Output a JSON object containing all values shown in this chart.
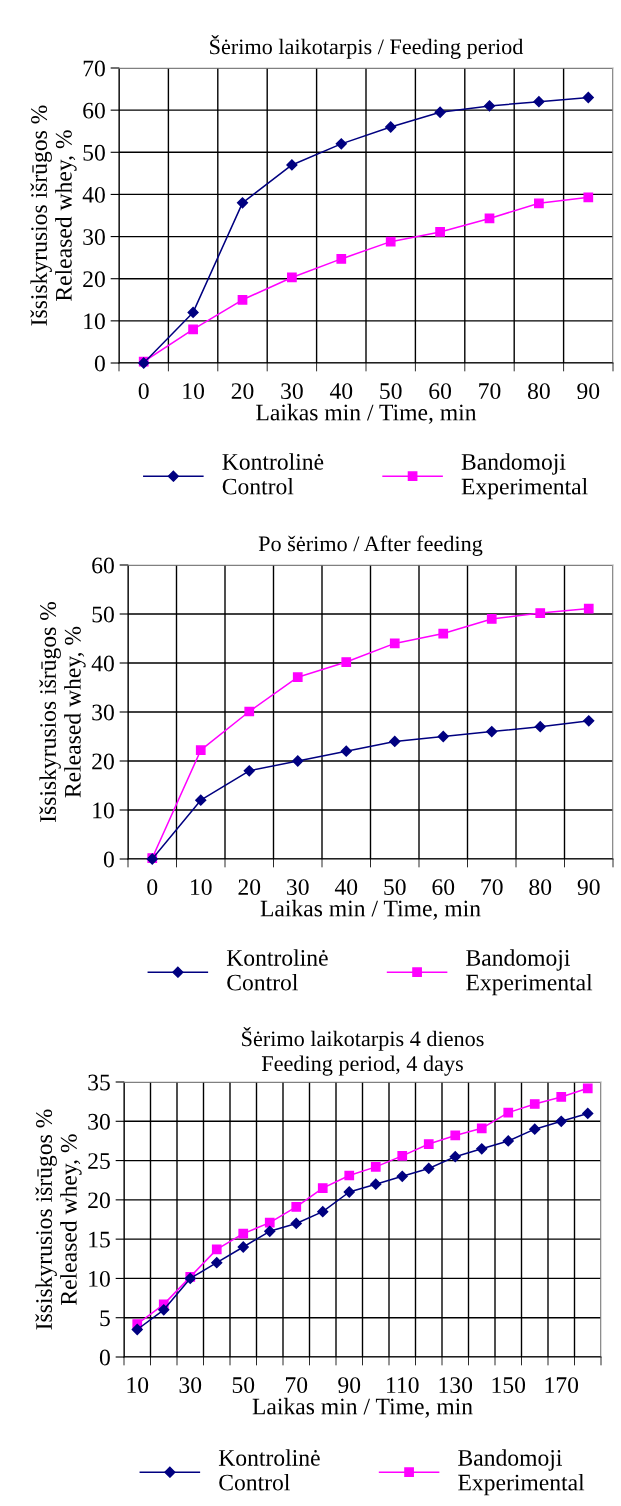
{
  "chart_data": [
    {
      "type": "line",
      "title": "Šėrimo laikotarpis / Feeding period",
      "xlabel": "Laikas min / Time, min",
      "ylabel": "Išsiskyrusios išrūgos %\nReleased whey, %",
      "categories": [
        "0",
        "10",
        "20",
        "30",
        "40",
        "50",
        "60",
        "70",
        "80",
        "90"
      ],
      "ylim": [
        0,
        70
      ],
      "yticks": [
        0,
        10,
        20,
        30,
        40,
        50,
        60,
        70
      ],
      "grid": true,
      "legend": "bottom",
      "series": [
        {
          "name": "Kontrolinė\nControl",
          "color": "#000080",
          "marker": "diamond",
          "values": [
            0,
            12,
            38,
            47,
            52,
            56,
            59.5,
            61,
            62,
            63
          ]
        },
        {
          "name": "Bandomoji\nExperimental",
          "color": "#ff00ff",
          "marker": "square",
          "values": [
            0.3,
            8,
            15,
            20.3,
            24.7,
            28.8,
            31.1,
            34.3,
            37.9,
            39.3
          ]
        }
      ]
    },
    {
      "type": "line",
      "title": "Po šėrimo / After feeding",
      "xlabel": "Laikas min / Time, min",
      "ylabel": "Išsiskyrusios išrūgos %\nReleased whey, %",
      "categories": [
        "0",
        "10",
        "20",
        "30",
        "40",
        "50",
        "60",
        "70",
        "80",
        "90"
      ],
      "ylim": [
        0,
        60
      ],
      "yticks": [
        0,
        10,
        20,
        30,
        40,
        50,
        60
      ],
      "grid": true,
      "legend": "bottom",
      "series": [
        {
          "name": "Kontrolinė\nControl",
          "color": "#000080",
          "marker": "diamond",
          "values": [
            0,
            12,
            18,
            20,
            22,
            24,
            25,
            26,
            27,
            28.2
          ]
        },
        {
          "name": "Bandomoji\nExperimental",
          "color": "#ff00ff",
          "marker": "square",
          "values": [
            0.2,
            22.2,
            30.1,
            37.1,
            40.2,
            44,
            46,
            49,
            50.2,
            51.1
          ]
        }
      ]
    },
    {
      "type": "line",
      "title": "Šėrimo laikotarpis 4 dienos",
      "subtitle": "Feeding period, 4 days",
      "xlabel": "Laikas min / Time, min",
      "ylabel": "Išsiskyrusios išrūgos %\nReleased whey, %",
      "categories": [
        "10",
        null,
        "30",
        null,
        "50",
        null,
        "70",
        null,
        "90",
        null,
        "110",
        null,
        "130",
        null,
        "150",
        null,
        "170",
        null
      ],
      "ylim": [
        0,
        35
      ],
      "yticks": [
        0,
        5,
        10,
        15,
        20,
        25,
        30,
        35
      ],
      "grid": true,
      "legend": "bottom",
      "series": [
        {
          "name": "Kontrolinė\nControl",
          "color": "#000080",
          "marker": "diamond",
          "values": [
            3.5,
            6,
            10,
            12,
            14,
            16,
            17,
            18.5,
            21,
            22,
            23,
            24,
            25.5,
            26.5,
            27.5,
            29,
            30,
            31
          ]
        },
        {
          "name": "Bandomoji\nExperimental",
          "color": "#ff00ff",
          "marker": "square",
          "values": [
            4.2,
            6.7,
            10.2,
            13.7,
            15.7,
            17.1,
            19.1,
            21.5,
            23.1,
            24.2,
            25.6,
            27.1,
            28.2,
            29.1,
            31.1,
            32.2,
            33.1,
            34.2
          ]
        }
      ]
    }
  ]
}
